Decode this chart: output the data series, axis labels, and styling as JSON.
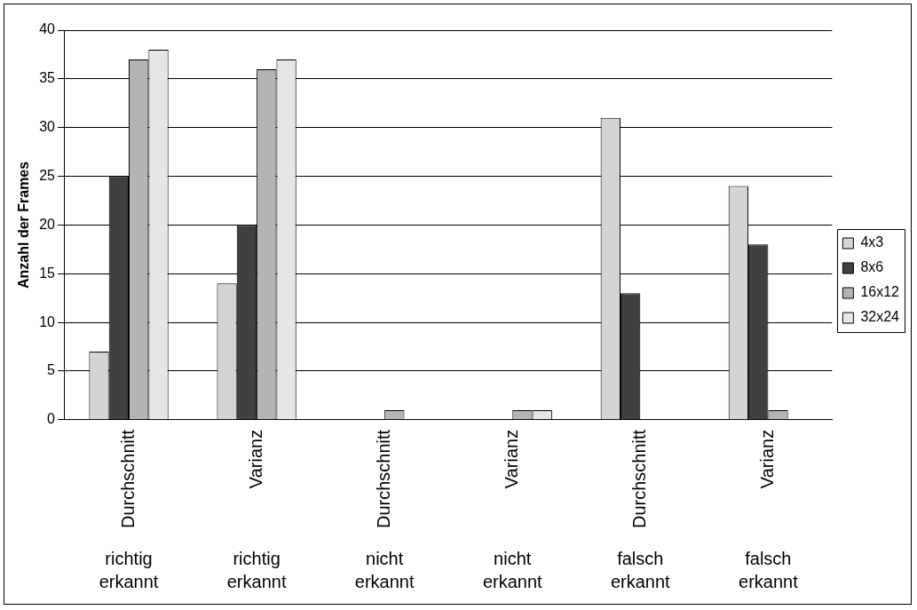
{
  "chart_data": {
    "type": "bar",
    "ylabel": "Anzahl der Frames",
    "categories": [
      "Durchschnitt",
      "Varianz",
      "Durchschnitt",
      "Varianz",
      "Durchschnitt",
      "Varianz"
    ],
    "series": [
      {
        "name": "4x3",
        "color": "#d4d4d4",
        "values": [
          7,
          14,
          0,
          0,
          31,
          24
        ]
      },
      {
        "name": "8x6",
        "color": "#404040",
        "values": [
          25,
          20,
          0,
          0,
          13,
          18
        ]
      },
      {
        "name": "16x12",
        "color": "#b4b4b4",
        "values": [
          37,
          36,
          1,
          1,
          0,
          1
        ]
      },
      {
        "name": "32x24",
        "color": "#e6e6e6",
        "values": [
          38,
          37,
          0,
          1,
          0,
          0
        ]
      }
    ],
    "ylim": [
      0,
      40
    ],
    "yticks": [
      0,
      5,
      10,
      15,
      20,
      25,
      30,
      35,
      40
    ],
    "grid": "y",
    "legend": "right",
    "annotations": [
      "richtig erkannt",
      "richtig erkannt",
      "nicht erkannt",
      "nicht erkannt",
      "falsch erkannt",
      "falsch erkannt"
    ]
  }
}
